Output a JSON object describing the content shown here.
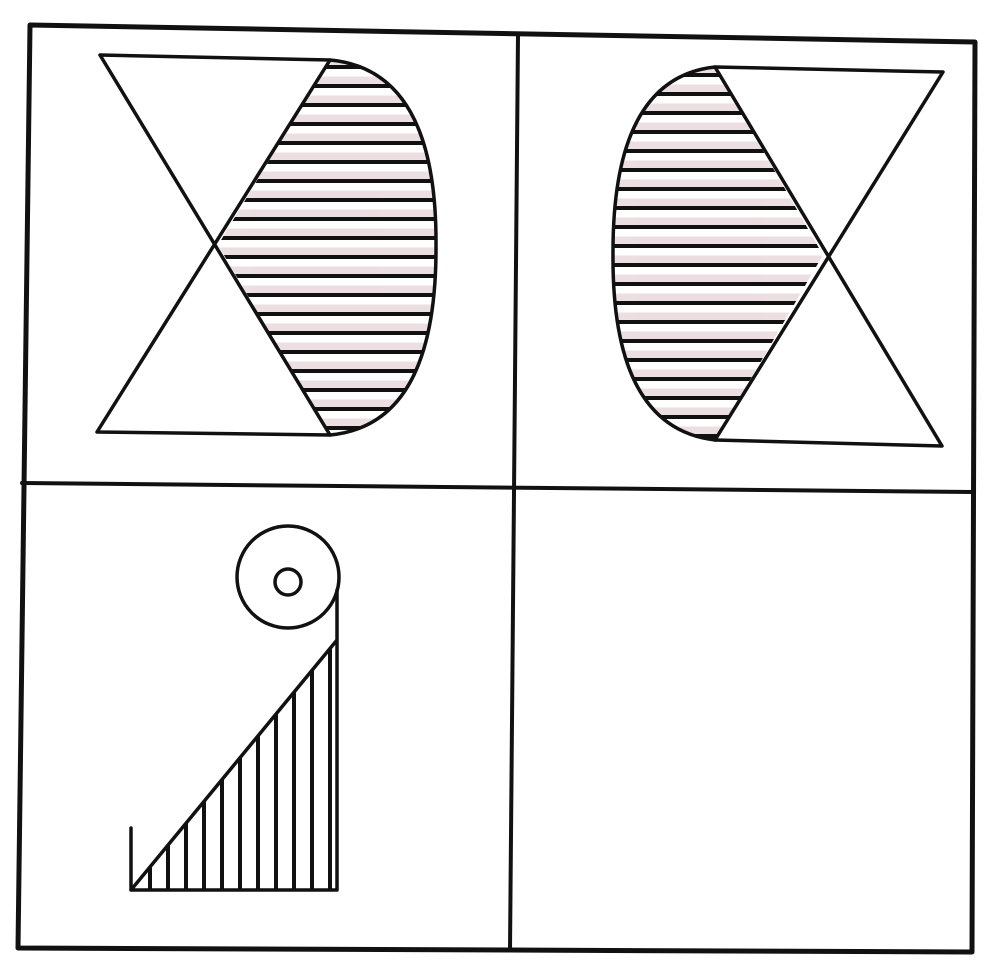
{
  "figure": {
    "type": "figure-analogy-puzzle",
    "layout": "2x2 grid",
    "line_color": "#111111",
    "background_color": "#ffffff",
    "hatch_tint": "#c9a3a8",
    "panels": [
      {
        "position": "top-left",
        "shape": "bow-tie with shaded half-ellipse on right",
        "hatch_direction": "horizontal"
      },
      {
        "position": "top-right",
        "shape": "mirrored bow-tie with shaded half-ellipse on left",
        "hatch_direction": "horizontal"
      },
      {
        "position": "bottom-left",
        "shape": "hatched right triangle with concentric circles above",
        "hatch_direction": "vertical"
      },
      {
        "position": "bottom-right",
        "shape": "empty answer panel"
      }
    ]
  }
}
